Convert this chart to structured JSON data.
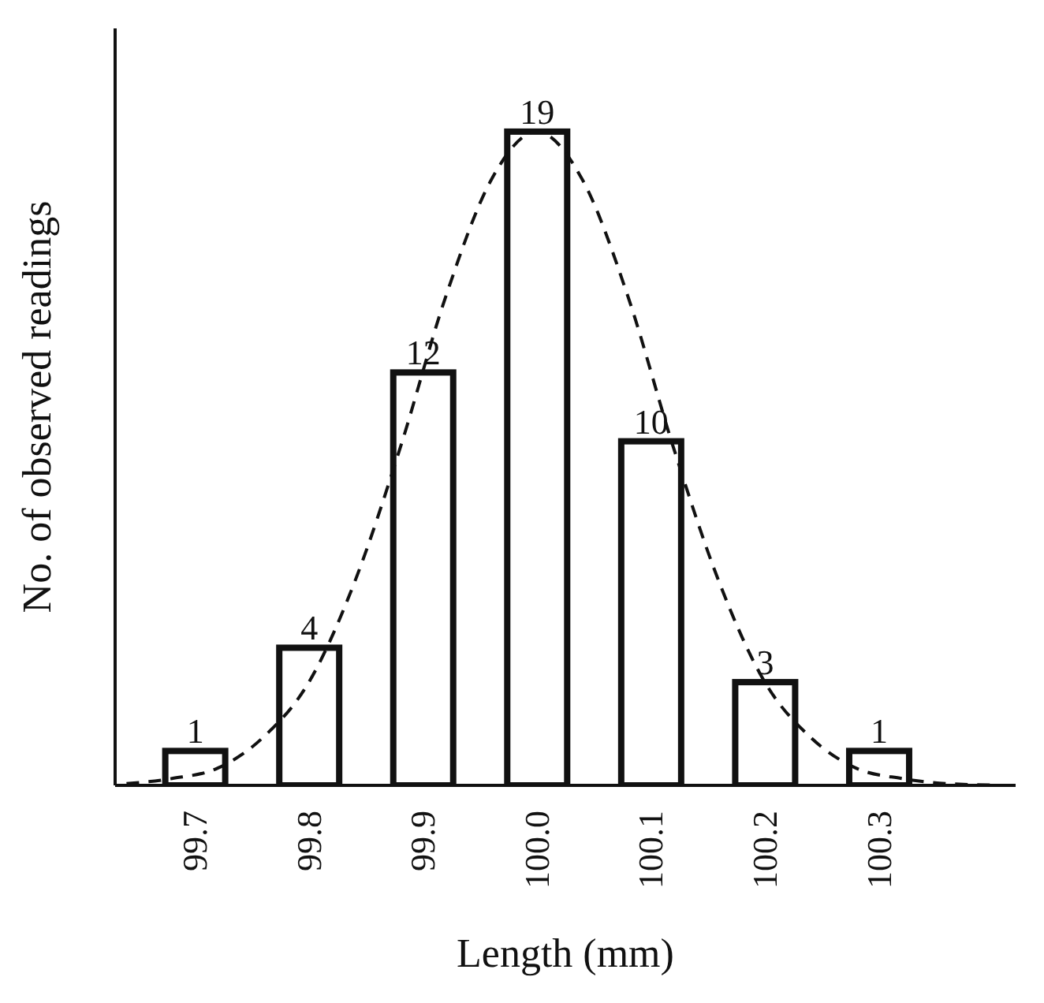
{
  "chart_data": {
    "type": "bar",
    "xlabel": "Length (mm)",
    "ylabel": "No. of observed readings",
    "x": [
      99.7,
      99.8,
      99.9,
      100.0,
      100.1,
      100.2,
      100.3
    ],
    "series": [
      {
        "color": "#ffffff",
        "values": [
          1,
          4,
          12,
          19,
          10,
          3,
          1
        ],
        "value_labels": [
          "1",
          "4",
          "12",
          "19",
          "10",
          "3",
          "1"
        ]
      },
      {
        "type": "line",
        "color": "#111111",
        "line_style": "dashed",
        "marker": "none",
        "x": [
          99.64,
          99.68,
          99.72,
          99.76,
          99.8,
          99.84,
          99.88,
          99.92,
          99.96,
          100.0,
          100.04,
          100.08,
          100.12,
          100.16,
          100.2,
          100.24,
          100.28,
          100.32,
          100.36,
          100.4
        ],
        "values": [
          0.05,
          0.2,
          0.5,
          1.4,
          3.0,
          5.9,
          9.8,
          14.2,
          17.6,
          19,
          17.6,
          14.2,
          9.8,
          5.9,
          3.0,
          1.4,
          0.5,
          0.2,
          0.05,
          0.01
        ]
      }
    ],
    "xlim": [
      99.63,
      100.42
    ],
    "ylim": [
      0,
      22
    ],
    "xticks": [
      99.7,
      99.8,
      99.9,
      {
        "value": 100.0,
        "label": "100.0"
      },
      100.1,
      100.2,
      100.3
    ],
    "tick_labels": "x"
  }
}
